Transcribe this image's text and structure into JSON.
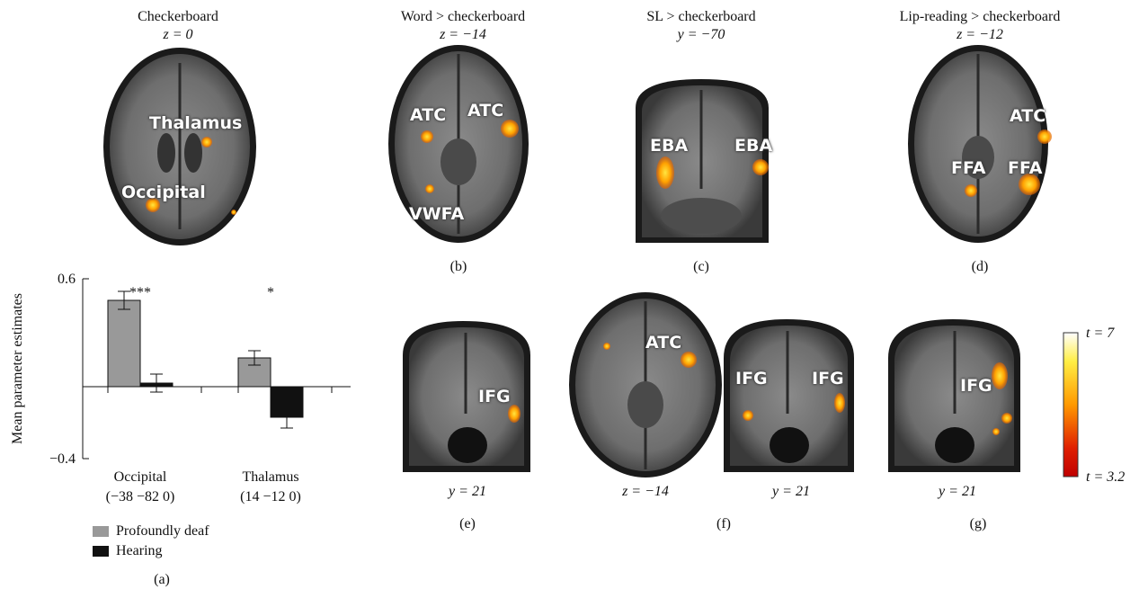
{
  "panels": {
    "a": {
      "title": "Checkerboard",
      "coord": "z = 0",
      "labels": [
        "Thalamus",
        "Occipital"
      ],
      "label": "(a)"
    },
    "b": {
      "title": "Word > checkerboard",
      "coord": "z = −14",
      "labels": [
        "ATC",
        "ATC",
        "VWFA"
      ],
      "label": "(b)"
    },
    "c": {
      "title": "SL > checkerboard",
      "coord": "y = −70",
      "labels": [
        "EBA",
        "EBA"
      ],
      "label": "(c)"
    },
    "d": {
      "title": "Lip-reading > checkerboard",
      "coord": "z = −12",
      "labels": [
        "ATC",
        "FFA",
        "FFA"
      ],
      "label": "(d)"
    },
    "e": {
      "labels": [
        "IFG"
      ],
      "coord": "y = 21",
      "label": "(e)"
    },
    "f": {
      "labels": [
        "ATC",
        "IFG",
        "IFG"
      ],
      "coord_axial": "z = −14",
      "coord_coronal": "y = 21",
      "label": "(f)"
    },
    "g": {
      "labels": [
        "IFG"
      ],
      "coord": "y = 21",
      "label": "(g)"
    }
  },
  "colorbar": {
    "max_label": "t = 7",
    "min_label": "t = 3.2",
    "max": 7,
    "min": 3.2,
    "colors": [
      "#ffffff",
      "#ffee44",
      "#ff9900",
      "#e02000",
      "#c00000"
    ]
  },
  "chart_data": {
    "type": "bar",
    "ylabel": "Mean parameter estimates",
    "ylim": [
      -0.4,
      0.6
    ],
    "yticks": [
      "0.6",
      "−0.4"
    ],
    "categories": [
      "Occipital",
      "Thalamus"
    ],
    "category_sublabels": [
      "(−38 −82 0)",
      "(14 −12 0)"
    ],
    "significance": [
      "***",
      "*"
    ],
    "series": [
      {
        "name": "Profoundly deaf",
        "color": "#999999",
        "values": [
          0.48,
          0.16
        ],
        "errors": [
          0.05,
          0.04
        ]
      },
      {
        "name": "Hearing",
        "color": "#111111",
        "values": [
          0.02,
          -0.17
        ],
        "errors": [
          0.05,
          0.06
        ]
      }
    ]
  }
}
